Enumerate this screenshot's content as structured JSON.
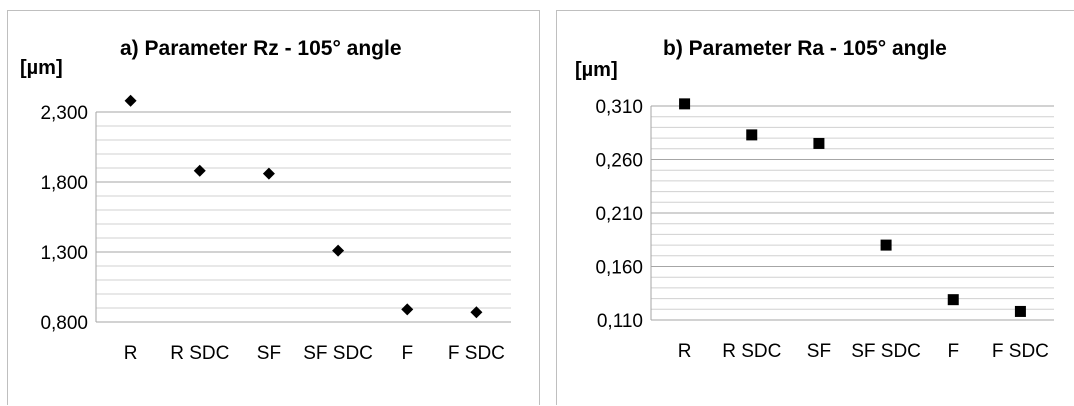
{
  "chart_data": [
    {
      "type": "scatter",
      "title": "a) Parameter Rz - 105° angle",
      "ylabel": "[µm]",
      "categories": [
        "R",
        "R SDC",
        "SF",
        "SF SDC",
        "F",
        "F SDC"
      ],
      "values": [
        2.38,
        1.88,
        1.86,
        1.31,
        0.89,
        0.87
      ],
      "ylim": [
        0.8,
        2.3
      ],
      "yticks": [
        0.8,
        1.3,
        1.8,
        2.3
      ],
      "ytick_labels": [
        "0,800",
        "1,300",
        "1,800",
        "2,300"
      ],
      "marker": "diamond",
      "grid": true,
      "colors": {
        "marker": "#000000",
        "major_grid": "#a6a6a6",
        "minor_grid": "#d0d0d0"
      }
    },
    {
      "type": "scatter",
      "title": "b) Parameter Ra - 105° angle",
      "ylabel": "[µm]",
      "categories": [
        "R",
        "R SDC",
        "SF",
        "SF SDC",
        "F",
        "F SDC"
      ],
      "values": [
        0.312,
        0.283,
        0.275,
        0.18,
        0.129,
        0.118
      ],
      "ylim": [
        0.11,
        0.31
      ],
      "yticks": [
        0.11,
        0.16,
        0.21,
        0.26,
        0.31
      ],
      "ytick_labels": [
        "0,110",
        "0,160",
        "0,210",
        "0,260",
        "0,310"
      ],
      "marker": "square",
      "grid": true,
      "colors": {
        "marker": "#000000",
        "major_grid": "#a6a6a6",
        "minor_grid": "#d0d0d0"
      }
    }
  ]
}
